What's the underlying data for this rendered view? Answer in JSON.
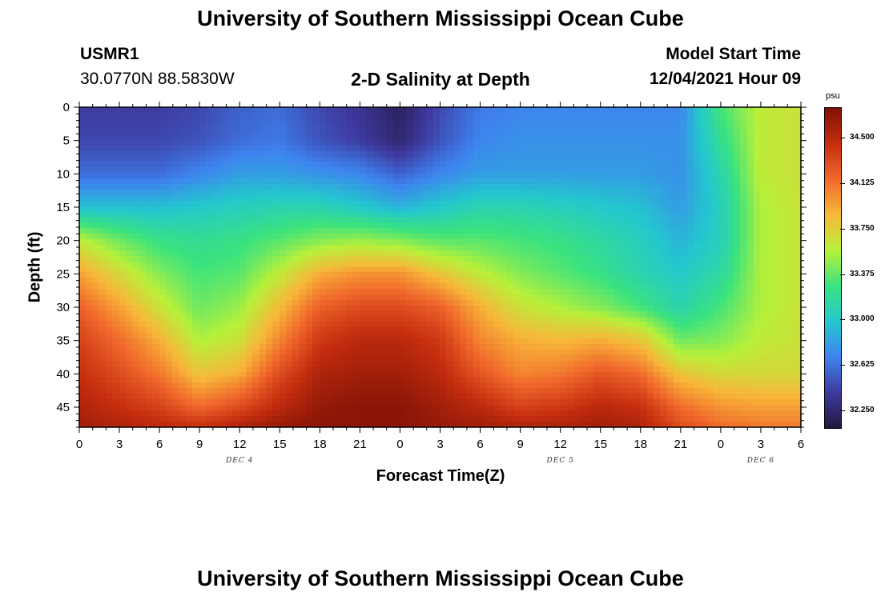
{
  "page": {
    "title": "University of Southern Mississippi Ocean Cube",
    "station_id": "USMR1",
    "station_coords": "30.0770N  88.5830W",
    "subtitle": "2-D Salinity at Depth",
    "model_label": "Model Start Time",
    "model_time": "12/04/2021 Hour 09",
    "footer_title": "University of Southern Mississippi Ocean Cube"
  },
  "chart_data": {
    "type": "heatmap",
    "title": "2-D Salinity at Depth",
    "xlabel": "Forecast Time(Z)",
    "ylabel": "Depth (ft)",
    "colorbar_unit": "psu",
    "x_tick_labels": [
      "0",
      "3",
      "6",
      "9",
      "12",
      "15",
      "18",
      "21",
      "0",
      "3",
      "6",
      "9",
      "12",
      "15",
      "18",
      "21",
      "0",
      "3",
      "6"
    ],
    "x_range_hours": [
      0,
      54
    ],
    "date_labels": [
      {
        "label": "DEC 4",
        "hour": 12
      },
      {
        "label": "DEC 5",
        "hour": 36
      },
      {
        "label": "DEC 6",
        "hour": 51
      }
    ],
    "y_ticks": [
      0,
      5,
      10,
      15,
      20,
      25,
      30,
      35,
      40,
      45
    ],
    "ylim": [
      0,
      48
    ],
    "y_inverted": true,
    "colorbar_ticks": [
      "34.500",
      "34.125",
      "33.750",
      "33.375",
      "33.000",
      "32.625",
      "32.250"
    ],
    "colorbar_range": [
      32.1,
      34.75
    ],
    "colormap": [
      "#23173e",
      "#3e3a9f",
      "#3f83f0",
      "#24c8cf",
      "#3be37f",
      "#b8f13a",
      "#f8b83a",
      "#f1682c",
      "#c52e0f",
      "#7e1106"
    ],
    "grid_hours": [
      0,
      3,
      6,
      9,
      12,
      15,
      18,
      21,
      24,
      27,
      30,
      33,
      36,
      39,
      42,
      45,
      48,
      51,
      54
    ],
    "grid_depths": [
      0,
      5,
      10,
      15,
      20,
      25,
      30,
      35,
      40,
      45,
      48
    ],
    "salinity": [
      [
        32.4,
        32.4,
        32.4,
        32.45,
        32.55,
        32.6,
        32.45,
        32.35,
        32.2,
        32.45,
        32.65,
        32.7,
        32.7,
        32.7,
        32.7,
        32.7,
        33.3,
        33.6,
        33.65
      ],
      [
        32.45,
        32.45,
        32.45,
        32.5,
        32.6,
        32.65,
        32.5,
        32.4,
        32.25,
        32.5,
        32.7,
        32.75,
        32.75,
        32.75,
        32.75,
        32.75,
        33.2,
        33.6,
        33.65
      ],
      [
        32.6,
        32.6,
        32.6,
        32.7,
        32.8,
        32.8,
        32.75,
        32.7,
        32.55,
        32.7,
        32.8,
        32.8,
        32.8,
        32.8,
        32.8,
        32.75,
        33.1,
        33.6,
        33.65
      ],
      [
        32.95,
        32.95,
        32.95,
        33.0,
        33.05,
        33.1,
        33.1,
        33.0,
        32.9,
        33.0,
        33.1,
        33.1,
        33.05,
        33.0,
        32.95,
        32.8,
        33.05,
        33.55,
        33.65
      ],
      [
        33.6,
        33.4,
        33.25,
        33.2,
        33.25,
        33.35,
        33.45,
        33.5,
        33.45,
        33.35,
        33.35,
        33.3,
        33.25,
        33.15,
        33.05,
        32.9,
        33.05,
        33.55,
        33.65
      ],
      [
        33.95,
        33.7,
        33.45,
        33.3,
        33.35,
        33.6,
        33.9,
        34.0,
        34.0,
        33.8,
        33.6,
        33.45,
        33.35,
        33.25,
        33.1,
        33.0,
        33.15,
        33.55,
        33.65
      ],
      [
        34.2,
        33.95,
        33.65,
        33.4,
        33.5,
        33.85,
        34.2,
        34.3,
        34.3,
        34.2,
        33.9,
        33.65,
        33.55,
        33.45,
        33.3,
        33.1,
        33.3,
        33.55,
        33.65
      ],
      [
        34.35,
        34.15,
        33.9,
        33.55,
        33.65,
        34.05,
        34.4,
        34.5,
        34.5,
        34.4,
        34.05,
        33.9,
        33.85,
        33.9,
        33.8,
        33.4,
        33.45,
        33.6,
        33.65
      ],
      [
        34.45,
        34.3,
        34.1,
        33.8,
        33.9,
        34.3,
        34.55,
        34.6,
        34.6,
        34.5,
        34.25,
        34.05,
        34.1,
        34.25,
        34.15,
        33.8,
        33.7,
        33.7,
        33.7
      ],
      [
        34.55,
        34.45,
        34.35,
        34.15,
        34.3,
        34.5,
        34.65,
        34.7,
        34.7,
        34.6,
        34.5,
        34.35,
        34.4,
        34.5,
        34.45,
        34.15,
        34.0,
        33.95,
        33.95
      ],
      [
        34.6,
        34.55,
        34.5,
        34.45,
        34.55,
        34.65,
        34.7,
        34.7,
        34.7,
        34.65,
        34.6,
        34.55,
        34.55,
        34.6,
        34.55,
        34.3,
        34.15,
        34.1,
        34.1
      ]
    ]
  }
}
